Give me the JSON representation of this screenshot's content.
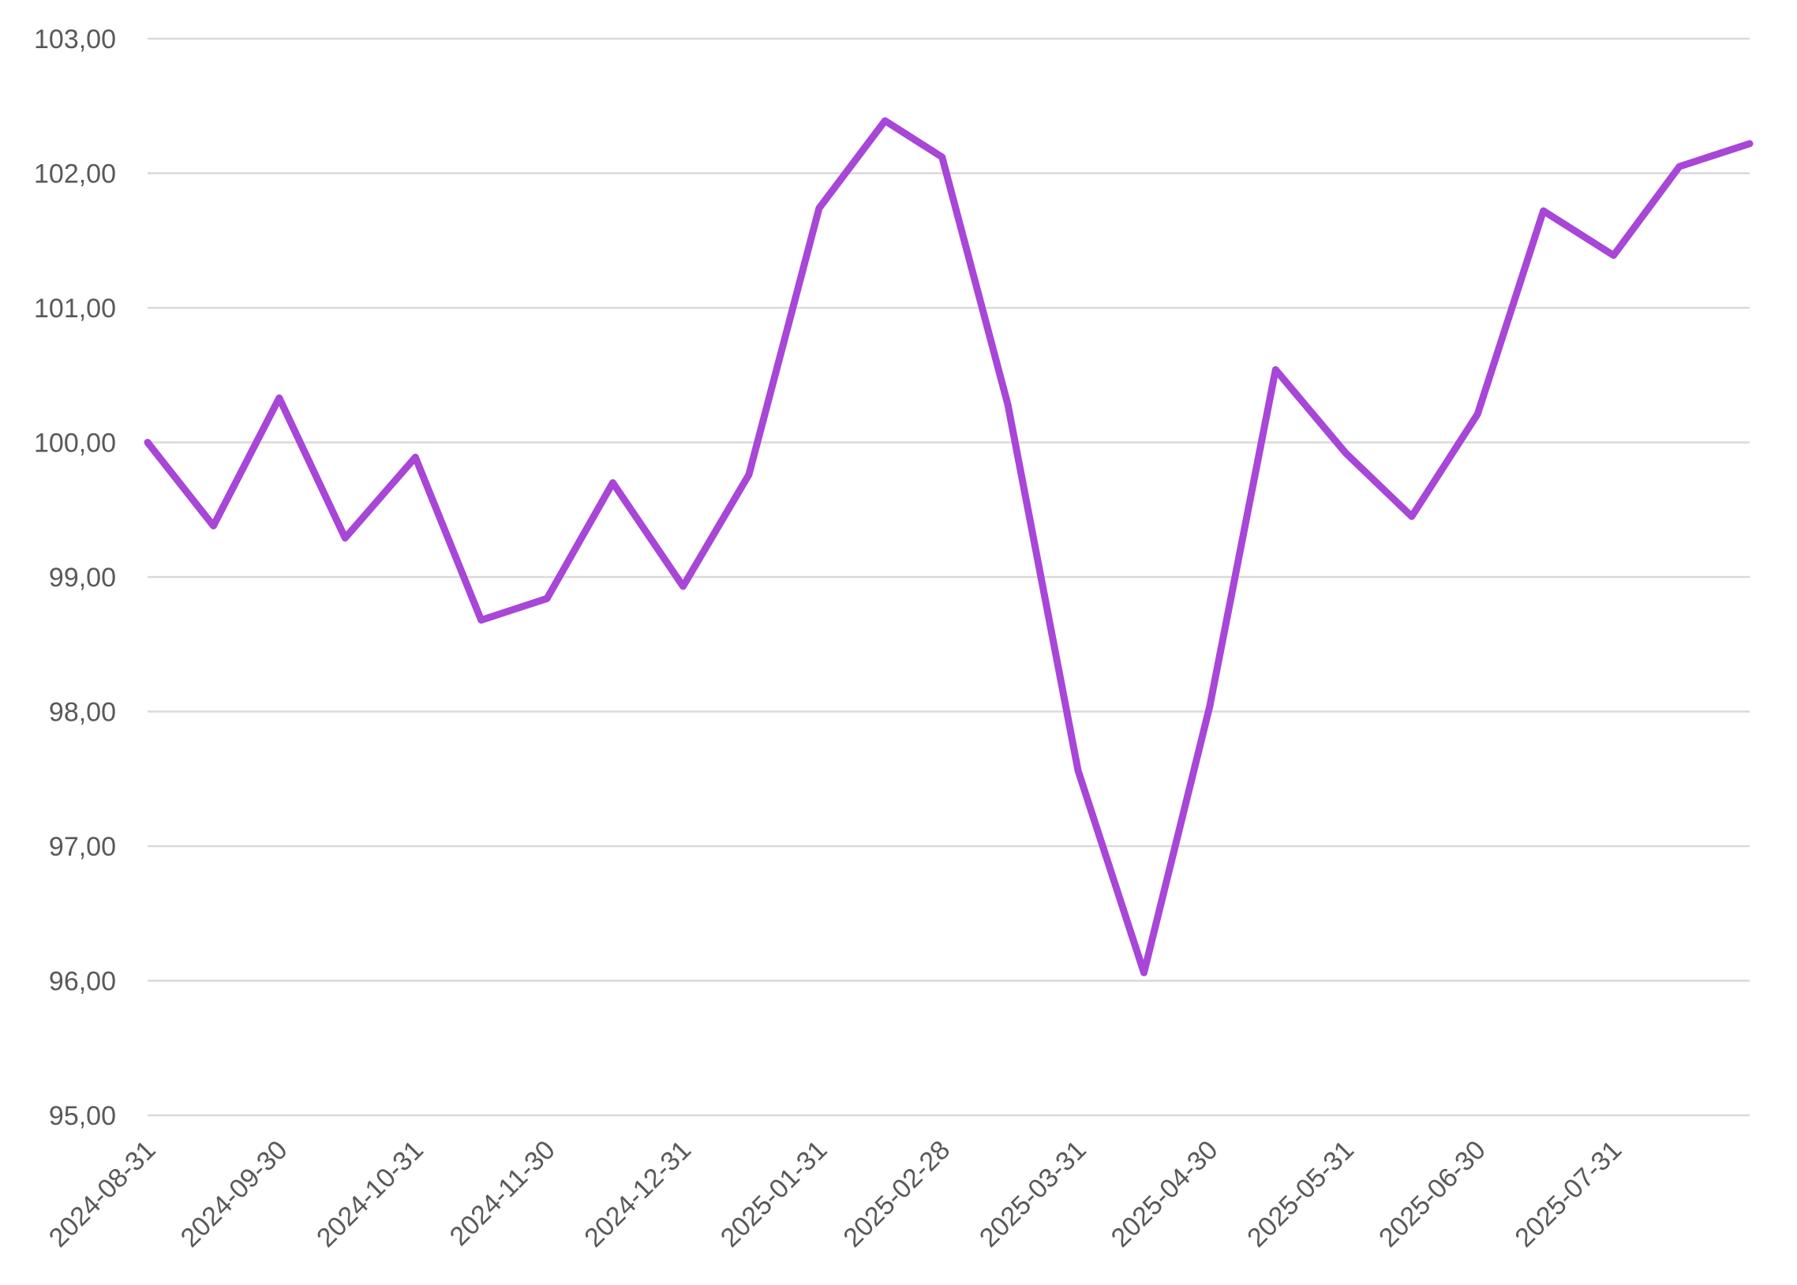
{
  "chart_data": {
    "type": "line",
    "title": "",
    "xlabel": "",
    "ylabel": "",
    "ylim": [
      95,
      103
    ],
    "y_ticks": [
      "95,00",
      "96,00",
      "97,00",
      "98,00",
      "99,00",
      "100,00",
      "101,00",
      "102,00",
      "103,00"
    ],
    "y_tick_values": [
      95,
      96,
      97,
      98,
      99,
      100,
      101,
      102,
      103
    ],
    "x_tick_labels": [
      "2024-08-31",
      "2024-09-30",
      "2024-10-31",
      "2024-11-30",
      "2024-12-31",
      "2025-01-31",
      "2025-02-28",
      "2025-03-31",
      "2025-04-30",
      "2025-05-31",
      "2025-06-30",
      "2025-07-31"
    ],
    "grid": true,
    "legend": "none",
    "color": "#a846d8",
    "x": [
      "2024-08-31",
      "2024-09-15",
      "2024-09-30",
      "2024-10-15",
      "2024-10-31",
      "2024-11-15",
      "2024-11-30",
      "2024-12-15",
      "2024-12-31",
      "2025-01-15",
      "2025-01-31",
      "2025-02-15",
      "2025-02-28",
      "2025-03-15",
      "2025-03-31",
      "2025-04-15",
      "2025-04-30",
      "2025-05-15",
      "2025-05-31",
      "2025-06-15",
      "2025-06-30",
      "2025-07-15",
      "2025-07-31",
      "2025-08-15",
      "2025-08-31"
    ],
    "series": [
      {
        "values": [
          100.0,
          99.38,
          100.33,
          99.29,
          99.89,
          98.68,
          98.84,
          99.7,
          98.93,
          99.76,
          101.74,
          102.39,
          102.12,
          100.28,
          97.56,
          96.06,
          98.04,
          100.54,
          99.92,
          99.45,
          100.21,
          101.72,
          101.39,
          102.05,
          102.22
        ]
      }
    ]
  }
}
